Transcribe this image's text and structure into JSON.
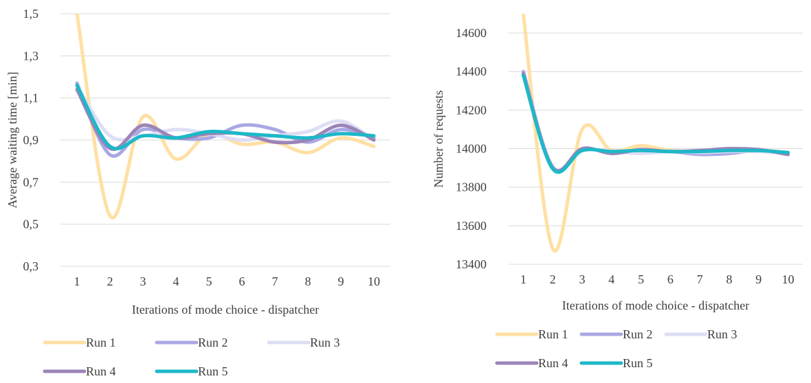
{
  "chart_data": [
    {
      "type": "line",
      "title": "",
      "xlabel": "Iterations of mode choice - dispatcher",
      "ylabel": "Average waiting time [min]",
      "x": [
        1,
        2,
        3,
        4,
        5,
        6,
        7,
        8,
        9,
        10
      ],
      "x_tick_labels": [
        "1",
        "2",
        "3",
        "4",
        "5",
        "6",
        "7",
        "8",
        "9",
        "10"
      ],
      "ylim": [
        0.3,
        1.5
      ],
      "y_ticks": [
        0.3,
        0.5,
        0.7,
        0.9,
        1.1,
        1.3,
        1.5
      ],
      "y_tick_labels": [
        "0,3",
        "0,5",
        "0,7",
        "0,9",
        "1,1",
        "1,3",
        "1,5"
      ],
      "grid": true,
      "legend_position": "bottom",
      "series": [
        {
          "name": "Run 1",
          "color": "#FFE0A3",
          "values": [
            1.5,
            0.54,
            1.01,
            0.81,
            0.93,
            0.88,
            0.89,
            0.84,
            0.91,
            0.87
          ]
        },
        {
          "name": "Run 2",
          "color": "#A9A8E4",
          "values": [
            1.17,
            0.83,
            0.95,
            0.91,
            0.91,
            0.97,
            0.95,
            0.89,
            0.95,
            0.91
          ]
        },
        {
          "name": "Run 3",
          "color": "#DDDDF5",
          "values": [
            1.16,
            0.92,
            0.92,
            0.95,
            0.93,
            0.9,
            0.92,
            0.94,
            0.99,
            0.9
          ]
        },
        {
          "name": "Run 4",
          "color": "#9C84B8",
          "values": [
            1.14,
            0.86,
            0.97,
            0.91,
            0.93,
            0.93,
            0.89,
            0.9,
            0.97,
            0.9
          ]
        },
        {
          "name": "Run 5",
          "color": "#1DB8C8",
          "values": [
            1.16,
            0.87,
            0.92,
            0.91,
            0.94,
            0.93,
            0.92,
            0.91,
            0.93,
            0.92
          ]
        }
      ]
    },
    {
      "type": "line",
      "title": "",
      "xlabel": "Iterations of mode choice - dispatcher",
      "ylabel": "Number of requests",
      "x": [
        1,
        2,
        3,
        4,
        5,
        6,
        7,
        8,
        9,
        10
      ],
      "x_tick_labels": [
        "1",
        "2",
        "3",
        "4",
        "5",
        "6",
        "7",
        "8",
        "9",
        "10"
      ],
      "ylim": [
        13400,
        14700
      ],
      "y_ticks": [
        13400,
        13600,
        13800,
        14000,
        14200,
        14400,
        14600
      ],
      "y_tick_labels": [
        "13400",
        "13600",
        "13800",
        "14000",
        "14200",
        "14400",
        "14600"
      ],
      "grid": true,
      "legend_position": "bottom",
      "series": [
        {
          "name": "Run 1",
          "color": "#FFE0A3",
          "values": [
            14700,
            13480,
            14100,
            13990,
            14015,
            13990,
            13985,
            13990,
            13995,
            13975
          ]
        },
        {
          "name": "Run 2",
          "color": "#A9A8E4",
          "values": [
            14400,
            13905,
            13995,
            13980,
            13985,
            13985,
            13970,
            13975,
            13990,
            13970
          ]
        },
        {
          "name": "Run 3",
          "color": "#DDDDF5",
          "values": [
            14390,
            13900,
            13990,
            13985,
            13975,
            13985,
            13980,
            13985,
            13985,
            13975
          ]
        },
        {
          "name": "Run 4",
          "color": "#9C84B8",
          "values": [
            14390,
            13900,
            14000,
            13975,
            13995,
            13985,
            13990,
            14000,
            13995,
            13970
          ]
        },
        {
          "name": "Run 5",
          "color": "#1DB8C8",
          "values": [
            14380,
            13895,
            13990,
            13985,
            13990,
            13985,
            13985,
            13990,
            13990,
            13980
          ]
        }
      ]
    }
  ]
}
